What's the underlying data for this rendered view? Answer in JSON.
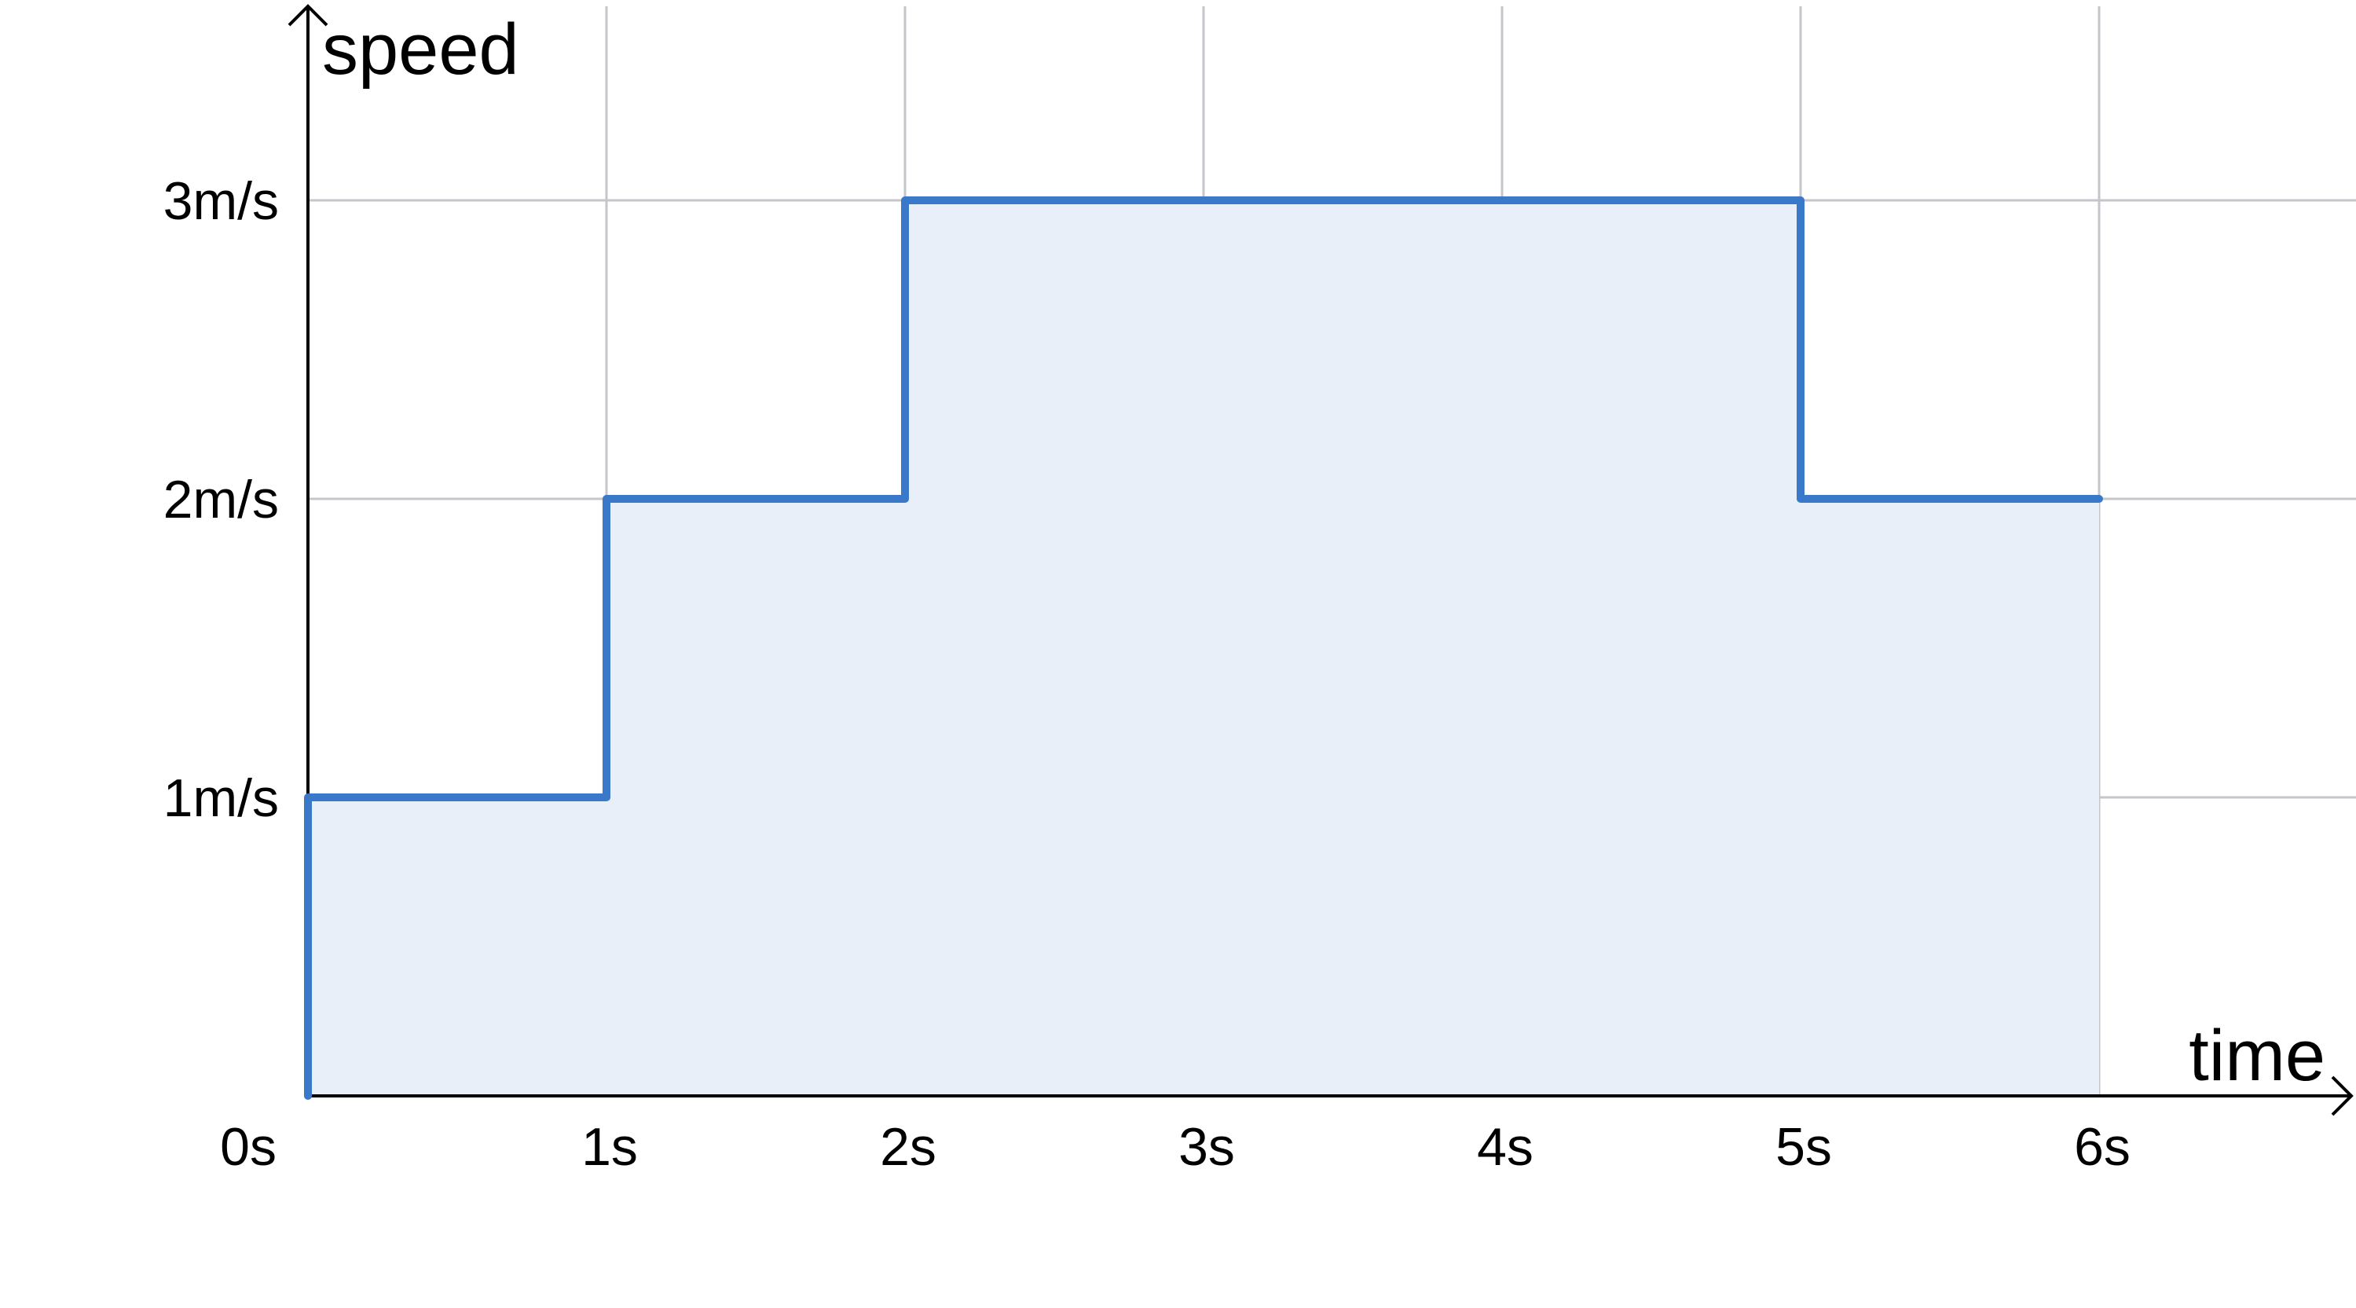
{
  "chart_data": {
    "type": "line",
    "step": true,
    "area_fill": true,
    "xlabel": "time",
    "ylabel": "speed",
    "xlim": [
      0,
      6.9
    ],
    "ylim": [
      0,
      3.65
    ],
    "x_ticks": [
      0,
      1,
      2,
      3,
      4,
      5,
      6
    ],
    "x_tick_labels": [
      "0s",
      "1s",
      "2s",
      "3s",
      "4s",
      "5s",
      "6s"
    ],
    "y_ticks": [
      1,
      2,
      3
    ],
    "y_tick_labels": [
      "1m/s",
      "2m/s",
      "3m/s"
    ],
    "grid": true,
    "series": [
      {
        "x": [
          0,
          0,
          1,
          1,
          2,
          2,
          5,
          5,
          6
        ],
        "y": [
          0,
          1,
          1,
          2,
          2,
          3,
          3,
          2,
          2
        ]
      }
    ],
    "colors": {
      "line": "#3a78c9",
      "fill": "#e8eff8",
      "grid": "#c4c6cb",
      "axis": "#000000"
    }
  }
}
